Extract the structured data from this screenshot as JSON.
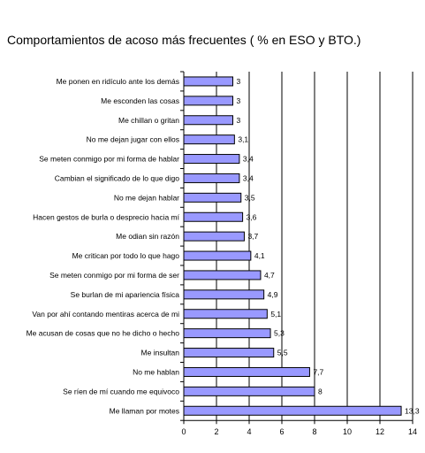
{
  "chart_data": {
    "type": "bar",
    "orientation": "horizontal",
    "title": "Comportamientos de acoso más frecuentes ( % en ESO y BTO.)",
    "categories": [
      "Me ponen en ridículo ante los demás",
      "Me esconden las cosas",
      "Me chillan o gritan",
      "No me dejan jugar con ellos",
      "Se meten conmigo por mi forma de hablar",
      "Cambian el significado de lo que digo",
      "No me dejan hablar",
      "Hacen gestos de burla o desprecio hacia mí",
      "Me odian sin razón",
      "Me critican por todo lo que hago",
      "Se meten conmigo por mi forma de ser",
      "Se burlan de mi apariencia física",
      "Van por ahí contando mentiras acerca de mi",
      "Me acusan de cosas que no he dicho o hecho",
      "Me insultan",
      "No me hablan",
      "Se ríen de mí cuando me equivoco",
      "Me llaman por motes"
    ],
    "values": [
      3,
      3,
      3,
      3.1,
      3.4,
      3.4,
      3.5,
      3.6,
      3.7,
      4.1,
      4.7,
      4.9,
      5.1,
      5.3,
      5.5,
      7.7,
      8,
      13.3
    ],
    "value_labels": [
      "3",
      "3",
      "3",
      "3,1",
      "3,4",
      "3,4",
      "3,5",
      "3,6",
      "3,7",
      "4,1",
      "4,7",
      "4,9",
      "5,1",
      "5,3",
      "5,5",
      "7,7",
      "8",
      "13,3"
    ],
    "xlim": [
      0,
      14
    ],
    "xticks": [
      0,
      2,
      4,
      6,
      8,
      10,
      12,
      14
    ],
    "xtick_labels": [
      "0",
      "2",
      "4",
      "6",
      "8",
      "10",
      "12",
      "14"
    ],
    "grid": "vertical",
    "legend": "none",
    "bar_color": "#9999ff",
    "bar_edge_color": "#000000"
  }
}
